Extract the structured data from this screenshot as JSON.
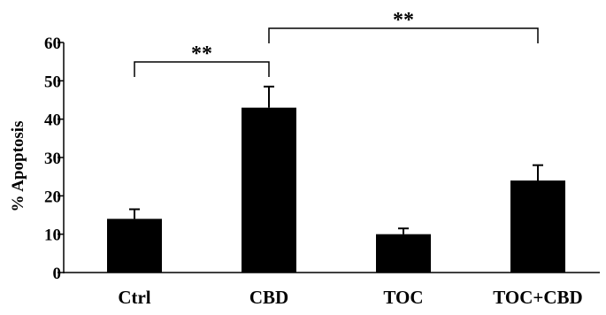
{
  "chart_data": {
    "type": "bar",
    "title": "",
    "xlabel": "",
    "ylabel": "% Apoptosis",
    "ylim": [
      0,
      60
    ],
    "yticks": [
      0,
      10,
      20,
      30,
      40,
      50,
      60
    ],
    "categories": [
      "Ctrl",
      "CBD",
      "TOC",
      "TOC+CBD"
    ],
    "values": [
      14,
      43,
      10,
      24
    ],
    "errors": [
      2.5,
      5.5,
      1.5,
      4
    ],
    "bar_color": "#000000",
    "grid": false,
    "legend": "none",
    "significance": [
      {
        "from": 0,
        "to": 1,
        "label": "**"
      },
      {
        "from": 1,
        "to": 3,
        "label": "**"
      }
    ]
  }
}
